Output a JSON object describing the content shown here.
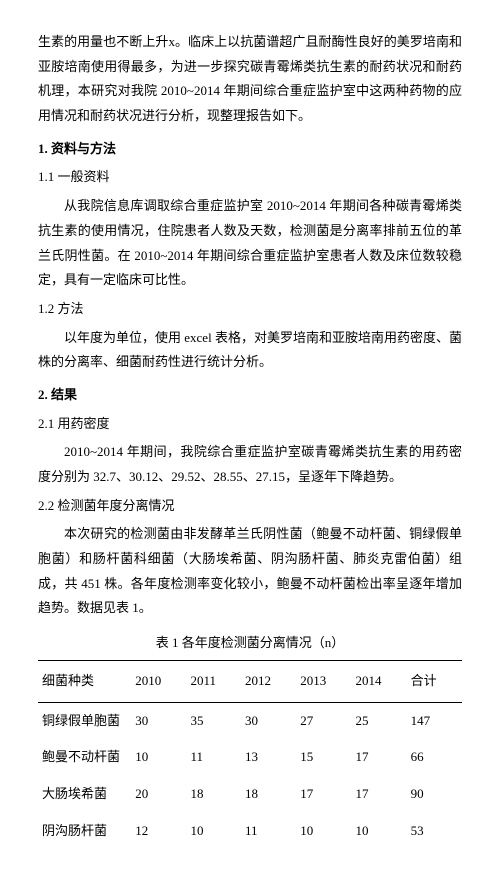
{
  "intro": "生素的用量也不断上升x。临床上以抗菌谱超广且耐酶性良好的美罗培南和亚胺培南使用得最多，为进一步探究碳青霉烯类抗生素的耐药状况和耐药机理，本研究对我院 2010~2014 年期间综合重症监护室中这两种药物的应用情况和耐药状况进行分析，现整理报告如下。",
  "h1_1": "1. 资料与方法",
  "h1_1_1": "1.1 一般资料",
  "p_1_1": "从我院信息库调取综合重症监护室 2010~2014 年期间各种碳青霉烯类抗生素的使用情况，住院患者人数及天数，检测菌是分离率排前五位的革兰氏阴性菌。在 2010~2014 年期间综合重症监护室患者人数及床位数较稳定，具有一定临床可比性。",
  "h1_1_2": "1.2 方法",
  "p_1_2": "以年度为单位，使用 excel 表格，对美罗培南和亚胺培南用药密度、菌株的分离率、细菌耐药性进行统计分析。",
  "h1_2": "2. 结果",
  "h1_2_1": "2.1 用药密度",
  "p_2_1": "2010~2014 年期间，我院综合重症监护室碳青霉烯类抗生素的用药密度分别为 32.7、30.12、29.52、28.55、27.15，呈逐年下降趋势。",
  "h1_2_2": "2.2 检测菌年度分离情况",
  "p_2_2": "本次研究的检测菌由非发酵革兰氏阴性菌（鲍曼不动杆菌、铜绿假单胞菌）和肠杆菌科细菌（大肠埃希菌、阴沟肠杆菌、肺炎克雷伯菌）组成，共 451 株。各年度检测率变化较小，鲍曼不动杆菌检出率呈逐年增加趋势。数据见表 1。",
  "table": {
    "caption": "表 1  各年度检测菌分离情况（n）",
    "columns": [
      "细菌种类",
      "2010",
      "2011",
      "2012",
      "2013",
      "2014",
      "合计"
    ],
    "rows": [
      [
        "铜绿假单胞菌",
        "30",
        "35",
        "30",
        "27",
        "25",
        "147"
      ],
      [
        "鲍曼不动杆菌",
        "10",
        "11",
        "13",
        "15",
        "17",
        "66"
      ],
      [
        "大肠埃希菌",
        "20",
        "18",
        "18",
        "17",
        "17",
        "90"
      ],
      [
        "阴沟肠杆菌",
        "12",
        "10",
        "11",
        "10",
        "10",
        "53"
      ]
    ]
  }
}
